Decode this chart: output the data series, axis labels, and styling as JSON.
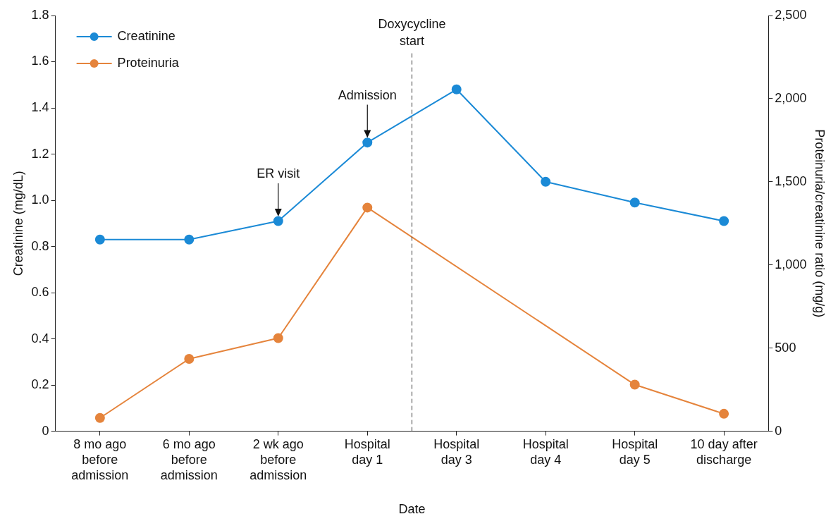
{
  "chart_data": {
    "type": "line",
    "xlabel": "Date",
    "ylabel": "Creatinine (mg/dL)",
    "y2label": "Proteinuria/creatinine ratio (mg/g)",
    "categories": [
      "8 mo ago\nbefore\nadmission",
      "6 mo ago\nbefore\nadmission",
      "2 wk ago\nbefore\nadmission",
      "Hospital\nday 1",
      "Hospital\nday 3",
      "Hospital\nday 4",
      "Hospital\nday 5",
      "10 day after\ndischarge"
    ],
    "series": [
      {
        "name": "Creatinine",
        "color": "#1b8ad6",
        "values": [
          0.83,
          0.83,
          0.91,
          1.25,
          1.48,
          1.08,
          0.99,
          0.91
        ]
      },
      {
        "name": "Proteinuria",
        "color": "#e5843c",
        "axis": "y2",
        "values": [
          80,
          435,
          560,
          1345,
          null,
          null,
          280,
          105
        ]
      }
    ],
    "ylim": [
      0,
      1.8
    ],
    "yticks": [
      {
        "value": 0,
        "label": "0"
      },
      {
        "value": 0.2,
        "label": "0.2"
      },
      {
        "value": 0.4,
        "label": "0.4"
      },
      {
        "value": 0.6,
        "label": "0.6"
      },
      {
        "value": 0.8,
        "label": "0.8"
      },
      {
        "value": 1,
        "label": "1.0"
      },
      {
        "value": 1.2,
        "label": "1.2"
      },
      {
        "value": 1.4,
        "label": "1.4"
      },
      {
        "value": 1.6,
        "label": "1.6"
      },
      {
        "value": 1.8,
        "label": "1.8"
      }
    ],
    "y2lim": [
      0,
      2500
    ],
    "y2ticks": [
      {
        "value": 0,
        "label": "0"
      },
      {
        "value": 500,
        "label": "500"
      },
      {
        "value": 1000,
        "label": "1,000"
      },
      {
        "value": 1500,
        "label": "1,500"
      },
      {
        "value": 2000,
        "label": "2,000"
      },
      {
        "value": 2500,
        "label": "2,500"
      }
    ],
    "annotations": [
      "Doxycycline\nstart",
      {
        "text": "ER visit",
        "x": "2 wk ago\nbefore\nadmission",
        "y": 0.93
      },
      {
        "text": "Admission",
        "x": "Hospital\nday 1",
        "y": 1.27
      }
    ],
    "marker": "circle",
    "line_style": "solid",
    "grid": false,
    "legend": "top left"
  }
}
